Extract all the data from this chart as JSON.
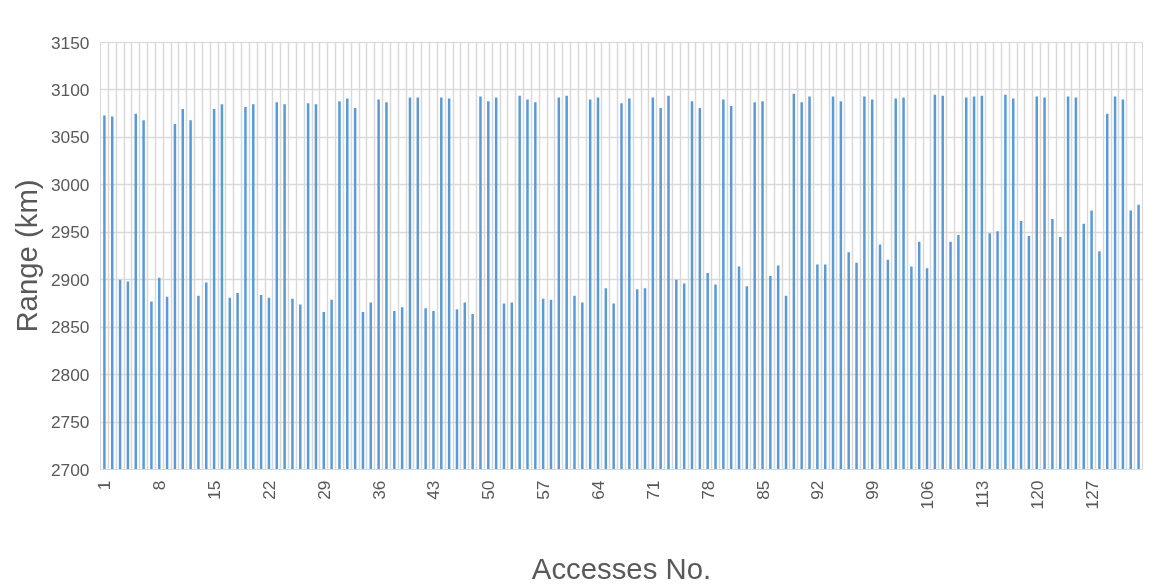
{
  "chart_data": {
    "type": "bar",
    "xlabel": "Accesses No.",
    "ylabel": "Range (km)",
    "categories": [
      "1",
      null,
      null,
      null,
      null,
      null,
      null,
      "8",
      null,
      null,
      null,
      null,
      null,
      null,
      "15",
      null,
      null,
      null,
      null,
      null,
      null,
      "22",
      null,
      null,
      null,
      null,
      null,
      null,
      "29",
      null,
      null,
      null,
      null,
      null,
      null,
      "36",
      null,
      null,
      null,
      null,
      null,
      null,
      "43",
      null,
      null,
      null,
      null,
      null,
      null,
      "50",
      null,
      null,
      null,
      null,
      null,
      null,
      "57",
      null,
      null,
      null,
      null,
      null,
      null,
      "64",
      null,
      null,
      null,
      null,
      null,
      null,
      "71",
      null,
      null,
      null,
      null,
      null,
      null,
      "78",
      null,
      null,
      null,
      null,
      null,
      null,
      "85",
      null,
      null,
      null,
      null,
      null,
      null,
      "92",
      null,
      null,
      null,
      null,
      null,
      null,
      "99",
      null,
      null,
      null,
      null,
      null,
      null,
      "106",
      null,
      null,
      null,
      null,
      null,
      null,
      "113",
      null,
      null,
      null,
      null,
      null,
      null,
      "120",
      null,
      null,
      null,
      null,
      null,
      null,
      "127",
      null,
      null,
      null,
      null,
      null,
      null
    ],
    "values": [
      3073,
      3072,
      2900,
      2898,
      3075,
      3068,
      2877,
      2902,
      2882,
      3064,
      3080,
      3068,
      2883,
      2897,
      3080,
      3085,
      2881,
      2886,
      3082,
      3085,
      2884,
      2881,
      3087,
      3085,
      2880,
      2874,
      3086,
      3085,
      2866,
      2879,
      3088,
      3091,
      3081,
      2866,
      2876,
      3090,
      3087,
      2867,
      2871,
      3092,
      3092,
      2870,
      2867,
      3092,
      3091,
      2869,
      2876,
      2864,
      3093,
      3088,
      3092,
      2875,
      2876,
      3094,
      3090,
      3087,
      2880,
      2879,
      3092,
      3094,
      2883,
      2876,
      3090,
      3092,
      2891,
      2875,
      3086,
      3091,
      2890,
      2891,
      3092,
      3081,
      3094,
      2900,
      2896,
      3088,
      3081,
      2907,
      2895,
      3090,
      3083,
      2914,
      2893,
      3087,
      3088,
      2904,
      2915,
      2883,
      3096,
      3087,
      3093,
      2916,
      2916,
      3093,
      3088,
      2929,
      2918,
      3093,
      3090,
      2937,
      2921,
      3091,
      3092,
      2914,
      2940,
      2912,
      3095,
      3094,
      2940,
      2947,
      3092,
      3093,
      3094,
      2949,
      2951,
      3095,
      3091,
      2962,
      2946,
      3093,
      3092,
      2964,
      2945,
      3093,
      3092,
      2959,
      2973,
      2930,
      3075,
      3093,
      3090,
      2973,
      2979
    ],
    "color": "#5b9bd5",
    "ylim": [
      2700,
      3150
    ],
    "yticks": [
      2700,
      2750,
      2800,
      2850,
      2900,
      2950,
      3000,
      3050,
      3100,
      3150
    ],
    "grid": true
  }
}
